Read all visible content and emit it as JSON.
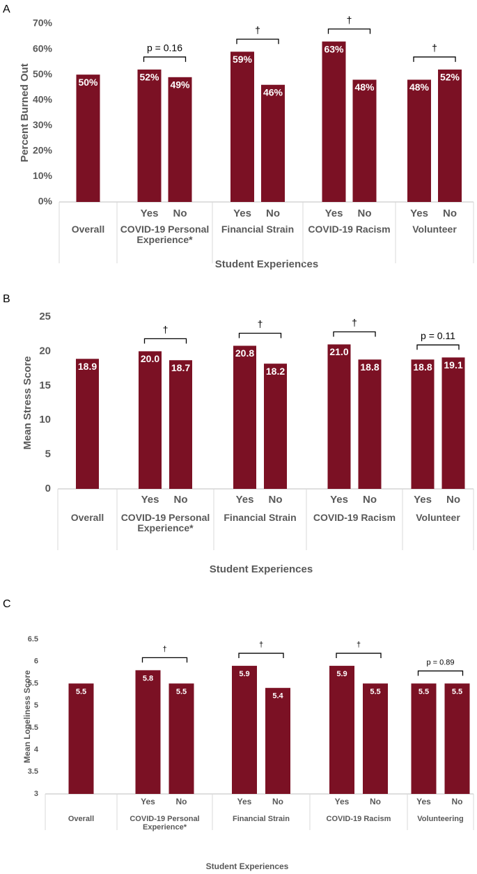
{
  "chart_data": [
    {
      "type": "bar",
      "panel": "A",
      "y_label": "Percent Burned Out",
      "x_label": "Student Experiences",
      "color": "#7b1124",
      "ylim": [
        0,
        70
      ],
      "yticks": [
        {
          "value": 0,
          "label": "0%"
        },
        {
          "value": 10,
          "label": "10%"
        },
        {
          "value": 20,
          "label": "20%"
        },
        {
          "value": 30,
          "label": "30%"
        },
        {
          "value": 40,
          "label": "40%"
        },
        {
          "value": 50,
          "label": "50%"
        },
        {
          "value": 60,
          "label": "60%"
        },
        {
          "value": 70,
          "label": "70%"
        }
      ],
      "groups": [
        {
          "label": "Overall",
          "categories": [
            null
          ],
          "values": [
            50
          ],
          "value_labels": [
            "50%"
          ]
        },
        {
          "label": "COVID-19 Personal Experience*",
          "categories": [
            "Yes",
            "No"
          ],
          "values": [
            52,
            49
          ],
          "value_labels": [
            "52%",
            "49%"
          ],
          "annotation": "p = 0.16"
        },
        {
          "label": "Financial Strain",
          "categories": [
            "Yes",
            "No"
          ],
          "values": [
            59,
            46
          ],
          "value_labels": [
            "59%",
            "46%"
          ],
          "annotation": "†"
        },
        {
          "label": "COVID-19 Racism",
          "categories": [
            "Yes",
            "No"
          ],
          "values": [
            63,
            48
          ],
          "value_labels": [
            "63%",
            "48%"
          ],
          "annotation": "†"
        },
        {
          "label": "Volunteer",
          "categories": [
            "Yes",
            "No"
          ],
          "values": [
            48,
            52
          ],
          "value_labels": [
            "48%",
            "52%"
          ],
          "annotation": "†"
        }
      ]
    },
    {
      "type": "bar",
      "panel": "B",
      "y_label": "Mean Stress Score",
      "x_label": "Student Experiences",
      "color": "#7b1124",
      "ylim": [
        0,
        25
      ],
      "yticks": [
        0,
        5,
        10,
        15,
        20,
        25
      ],
      "groups": [
        {
          "label": "Overall",
          "categories": [
            null
          ],
          "values": [
            18.9
          ]
        },
        {
          "label": "COVID-19 Personal Experience*",
          "categories": [
            "Yes",
            "No"
          ],
          "values": [
            20,
            18.7
          ],
          "value_labels": [
            "20.0",
            "18.7"
          ],
          "annotation": "†"
        },
        {
          "label": "Financial Strain",
          "categories": [
            "Yes",
            "No"
          ],
          "values": [
            20.8,
            18.2
          ],
          "annotation": "†"
        },
        {
          "label": "COVID-19 Racism",
          "categories": [
            "Yes",
            "No"
          ],
          "values": [
            21,
            18.8
          ],
          "value_labels": [
            "21.0",
            "18.8"
          ],
          "annotation": "†"
        },
        {
          "label": "Volunteer",
          "categories": [
            "Yes",
            "No"
          ],
          "values": [
            18.8,
            19.1
          ],
          "annotation": "p = 0.11"
        }
      ]
    },
    {
      "type": "bar",
      "panel": "C",
      "y_label": "Mean Loneliness Score",
      "x_label": "Student Experiences",
      "color": "#7b1124",
      "ylim": [
        3,
        6.5
      ],
      "yticks": [
        3,
        3.5,
        4,
        4.5,
        5,
        5.5,
        6,
        6.5
      ],
      "groups": [
        {
          "label": "Overall",
          "categories": [
            null
          ],
          "values": [
            5.5
          ]
        },
        {
          "label": "COVID-19 Personal Experience*",
          "categories": [
            "Yes",
            "No"
          ],
          "values": [
            5.8,
            5.5
          ],
          "annotation": "†"
        },
        {
          "label": "Financial Strain",
          "categories": [
            "Yes",
            "No"
          ],
          "values": [
            5.9,
            5.4
          ],
          "annotation": "†"
        },
        {
          "label": "COVID-19 Racism",
          "categories": [
            "Yes",
            "No"
          ],
          "values": [
            5.9,
            5.5
          ],
          "annotation": "†"
        },
        {
          "label": "Volunteering",
          "categories": [
            "Yes",
            "No"
          ],
          "values": [
            5.5,
            5.5
          ],
          "annotation": "p = 0.89"
        }
      ]
    }
  ]
}
